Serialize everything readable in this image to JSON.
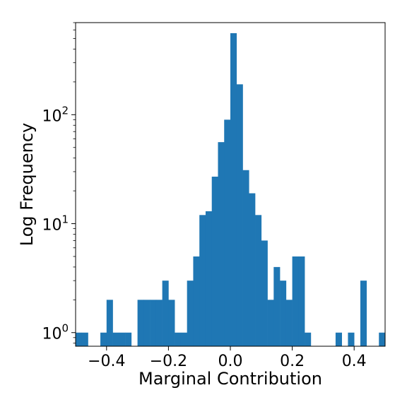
{
  "chart_data": {
    "type": "bar",
    "subtype": "histogram",
    "xlabel": "Marginal Contribution",
    "ylabel": "Log Frequency",
    "yscale": "log",
    "xlim": [
      -0.5,
      0.5
    ],
    "ylim": [
      0.75,
      700
    ],
    "bar_color": "#1f77b4",
    "grid": false,
    "x_ticks": [
      {
        "value": -0.4,
        "label": "−0.4"
      },
      {
        "value": -0.2,
        "label": "−0.2"
      },
      {
        "value": 0.0,
        "label": "0.0"
      },
      {
        "value": 0.2,
        "label": "0.2"
      },
      {
        "value": 0.4,
        "label": "0.4"
      }
    ],
    "y_ticks": [
      {
        "value": 1,
        "base": "10",
        "exp": "0"
      },
      {
        "value": 10,
        "base": "10",
        "exp": "1"
      },
      {
        "value": 100,
        "base": "10",
        "exp": "2"
      }
    ],
    "bin_width": 0.02,
    "bins": [
      {
        "x0": -0.5,
        "count": 1
      },
      {
        "x0": -0.48,
        "count": 1
      },
      {
        "x0": -0.46,
        "count": 0
      },
      {
        "x0": -0.44,
        "count": 0
      },
      {
        "x0": -0.42,
        "count": 1
      },
      {
        "x0": -0.4,
        "count": 2
      },
      {
        "x0": -0.38,
        "count": 1
      },
      {
        "x0": -0.36,
        "count": 1
      },
      {
        "x0": -0.34,
        "count": 1
      },
      {
        "x0": -0.32,
        "count": 0
      },
      {
        "x0": -0.3,
        "count": 2
      },
      {
        "x0": -0.28,
        "count": 2
      },
      {
        "x0": -0.26,
        "count": 2
      },
      {
        "x0": -0.24,
        "count": 2
      },
      {
        "x0": -0.22,
        "count": 3
      },
      {
        "x0": -0.2,
        "count": 2
      },
      {
        "x0": -0.18,
        "count": 1
      },
      {
        "x0": -0.16,
        "count": 1
      },
      {
        "x0": -0.14,
        "count": 3
      },
      {
        "x0": -0.12,
        "count": 5
      },
      {
        "x0": -0.1,
        "count": 12
      },
      {
        "x0": -0.08,
        "count": 13
      },
      {
        "x0": -0.06,
        "count": 27
      },
      {
        "x0": -0.04,
        "count": 56
      },
      {
        "x0": -0.02,
        "count": 90
      },
      {
        "x0": 0.0,
        "count": 560
      },
      {
        "x0": 0.02,
        "count": 190
      },
      {
        "x0": 0.04,
        "count": 31
      },
      {
        "x0": 0.06,
        "count": 19
      },
      {
        "x0": 0.08,
        "count": 12
      },
      {
        "x0": 0.1,
        "count": 7
      },
      {
        "x0": 0.12,
        "count": 2
      },
      {
        "x0": 0.14,
        "count": 4
      },
      {
        "x0": 0.16,
        "count": 3
      },
      {
        "x0": 0.18,
        "count": 2
      },
      {
        "x0": 0.2,
        "count": 5
      },
      {
        "x0": 0.22,
        "count": 5
      },
      {
        "x0": 0.24,
        "count": 1
      },
      {
        "x0": 0.26,
        "count": 0
      },
      {
        "x0": 0.28,
        "count": 0
      },
      {
        "x0": 0.3,
        "count": 0
      },
      {
        "x0": 0.32,
        "count": 0
      },
      {
        "x0": 0.34,
        "count": 1
      },
      {
        "x0": 0.36,
        "count": 0
      },
      {
        "x0": 0.38,
        "count": 1
      },
      {
        "x0": 0.4,
        "count": 0
      },
      {
        "x0": 0.42,
        "count": 3
      },
      {
        "x0": 0.44,
        "count": 0
      },
      {
        "x0": 0.46,
        "count": 0
      },
      {
        "x0": 0.48,
        "count": 1
      }
    ]
  }
}
